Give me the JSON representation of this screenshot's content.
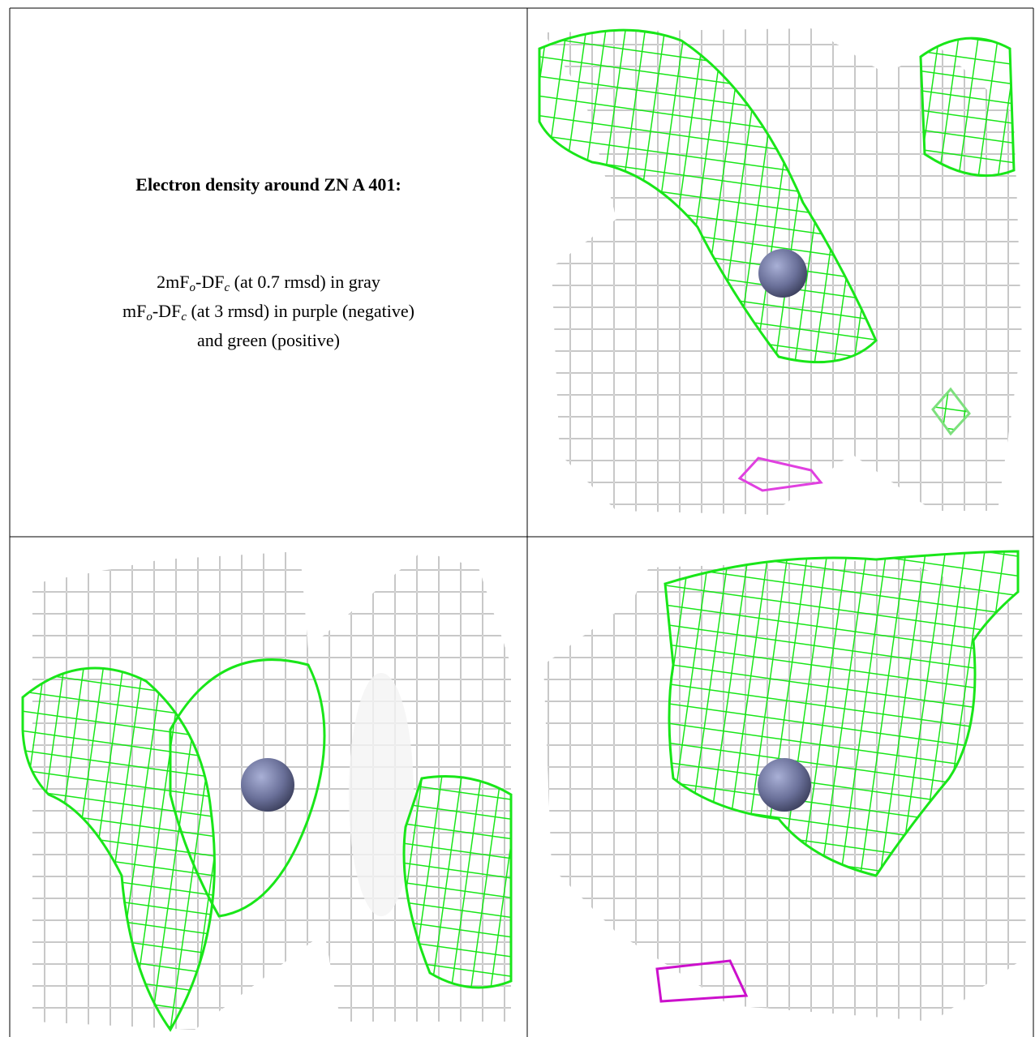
{
  "text_cell": {
    "title": "Electron density around ZN A 401:",
    "lines": [
      [
        "2mF",
        "o",
        "-DF",
        "c",
        " (at 0.7 rmsd) in gray"
      ],
      [
        "mF",
        "o",
        "-DF",
        "c",
        " (at 3 rmsd) in purple (negative)"
      ],
      [
        "and green (positive)"
      ]
    ]
  }
}
